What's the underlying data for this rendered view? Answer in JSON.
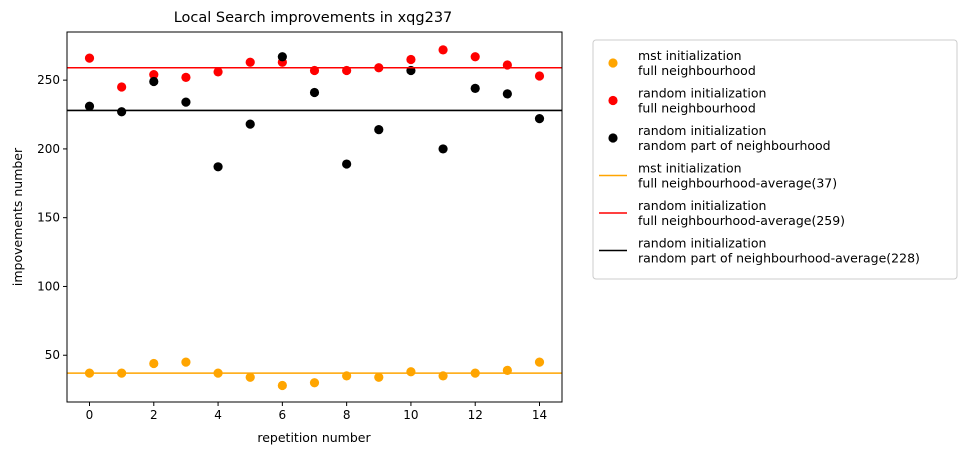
{
  "chart_data": {
    "type": "scatter",
    "title": "Local Search improvements in xqg237",
    "xlabel": "repetition number",
    "ylabel": "impovements number",
    "xlim": [
      -0.7,
      14.7
    ],
    "ylim": [
      16,
      285
    ],
    "x_ticks": [
      0,
      2,
      4,
      6,
      8,
      10,
      12,
      14
    ],
    "y_ticks": [
      50,
      100,
      150,
      200,
      250
    ],
    "x": [
      0,
      1,
      2,
      3,
      4,
      5,
      6,
      7,
      8,
      9,
      10,
      11,
      12,
      13,
      14
    ],
    "grid": false,
    "legend_position": "outside-right",
    "series": [
      {
        "kind": "scatter",
        "color": "#ffa500",
        "label_lines": [
          "mst initialization",
          "full neighbourhood"
        ],
        "values": [
          37,
          37,
          44,
          45,
          37,
          34,
          28,
          30,
          35,
          34,
          38,
          35,
          37,
          39,
          45
        ]
      },
      {
        "kind": "scatter",
        "color": "#ff0000",
        "label_lines": [
          "random initialization",
          "full neighbourhood"
        ],
        "values": [
          266,
          245,
          254,
          252,
          256,
          263,
          263,
          257,
          257,
          259,
          265,
          272,
          267,
          261,
          253
        ]
      },
      {
        "kind": "scatter",
        "color": "#000000",
        "label_lines": [
          "random initialization",
          "random part of neighbourhood"
        ],
        "values": [
          231,
          227,
          249,
          234,
          187,
          218,
          267,
          241,
          189,
          214,
          257,
          200,
          244,
          240,
          222
        ]
      },
      {
        "kind": "hline",
        "color": "#ffa500",
        "label_lines": [
          "mst initialization",
          "full neighbourhood-average(37)"
        ],
        "value": 37
      },
      {
        "kind": "hline",
        "color": "#ff0000",
        "label_lines": [
          "random initialization",
          "full neighbourhood-average(259)"
        ],
        "value": 259
      },
      {
        "kind": "hline",
        "color": "#000000",
        "label_lines": [
          "random initialization",
          "random part of neighbourhood-average(228)"
        ],
        "value": 228
      }
    ]
  }
}
